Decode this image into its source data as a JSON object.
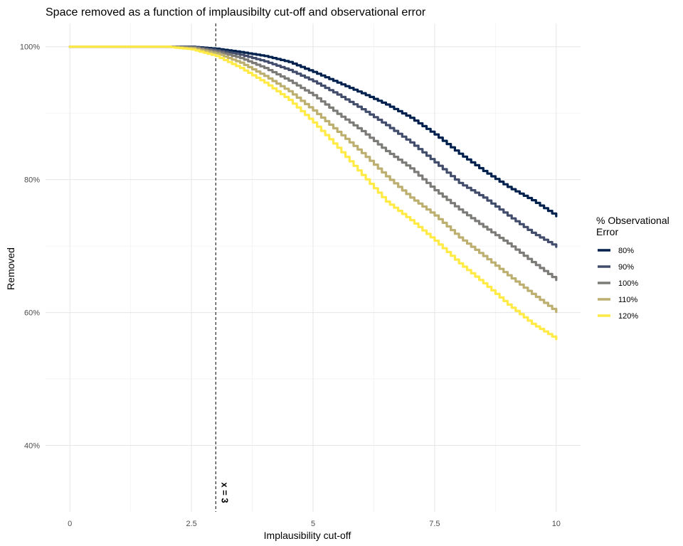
{
  "chart_data": {
    "type": "line",
    "title": "Space removed as a function of implausibilty cut-off and observational error",
    "xlabel": "Implausibility cut-off",
    "ylabel": "Removed",
    "xlim": [
      -0.5,
      10.5
    ],
    "ylim": [
      30,
      103.5
    ],
    "x_ticks": [
      0,
      2.5,
      5,
      7.5,
      10
    ],
    "x_tick_labels": [
      "0",
      "2.5",
      "5",
      "7.5",
      "10"
    ],
    "y_ticks": [
      40,
      60,
      80,
      100
    ],
    "y_tick_labels": [
      "40%",
      "60%",
      "80%",
      "100%"
    ],
    "grid": true,
    "legend": {
      "title": "% Observational Error",
      "title_lines": [
        "% Observational",
        "Error"
      ],
      "position": "right"
    },
    "vline": {
      "x": 3,
      "label": "x = 3",
      "style": "dashed",
      "color": "#000000"
    },
    "series": [
      {
        "name": "80%",
        "color": "#00204D",
        "x": [
          0,
          1.5,
          2.0,
          2.5,
          3.0,
          3.5,
          4.0,
          4.5,
          5.0,
          5.5,
          6.0,
          6.5,
          7.0,
          7.5,
          8.0,
          8.5,
          9.0,
          9.5,
          10.0
        ],
        "values": [
          100,
          100,
          100,
          100,
          99.7,
          99.2,
          98.6,
          97.7,
          96.2,
          94.6,
          93.0,
          91.3,
          89.3,
          86.8,
          83.9,
          81.3,
          78.9,
          76.9,
          74.5
        ]
      },
      {
        "name": "90%",
        "color": "#414D6B",
        "x": [
          0,
          1.5,
          2.0,
          2.5,
          3.0,
          3.5,
          4.0,
          4.5,
          5.0,
          5.5,
          6.0,
          6.5,
          7.0,
          7.5,
          8.0,
          8.5,
          9.0,
          9.5,
          10.0
        ],
        "values": [
          100,
          100,
          100,
          100,
          99.5,
          98.8,
          97.8,
          96.5,
          94.8,
          92.8,
          90.6,
          88.2,
          85.6,
          82.6,
          79.5,
          77.3,
          74.6,
          72.0,
          69.9
        ]
      },
      {
        "name": "100%",
        "color": "#7C7B78",
        "x": [
          0,
          1.5,
          2.0,
          2.5,
          3.0,
          3.5,
          4.0,
          4.5,
          5.0,
          5.5,
          6.0,
          6.5,
          7.0,
          7.5,
          8.0,
          8.5,
          9.0,
          9.5,
          10.0
        ],
        "values": [
          100,
          100,
          100,
          99.9,
          99.3,
          98.3,
          96.8,
          94.9,
          92.7,
          89.9,
          87.3,
          84.3,
          81.7,
          78.4,
          75.5,
          72.9,
          70.4,
          67.6,
          64.9
        ]
      },
      {
        "name": "110%",
        "color": "#BCAF6F",
        "x": [
          0,
          1.5,
          2.0,
          2.5,
          3.0,
          3.5,
          4.0,
          4.5,
          5.0,
          5.5,
          6.0,
          6.5,
          7.0,
          7.5,
          8.0,
          8.5,
          9.0,
          9.5,
          10.0
        ],
        "values": [
          100,
          100,
          100,
          99.8,
          99.0,
          97.6,
          95.6,
          93.3,
          90.4,
          87.2,
          84.0,
          80.5,
          77.3,
          74.6,
          71.3,
          68.5,
          65.6,
          62.8,
          60.1
        ]
      },
      {
        "name": "120%",
        "color": "#FFEA46",
        "x": [
          0,
          1.5,
          2.0,
          2.5,
          3.0,
          3.5,
          4.0,
          4.5,
          5.0,
          5.5,
          6.0,
          6.5,
          7.0,
          7.5,
          8.0,
          8.5,
          9.0,
          9.5,
          10.0
        ],
        "values": [
          100,
          100,
          100,
          99.6,
          98.6,
          96.8,
          94.6,
          92.0,
          88.6,
          84.8,
          80.7,
          76.7,
          73.9,
          70.8,
          67.4,
          64.4,
          61.2,
          58.3,
          56.0
        ]
      }
    ]
  }
}
